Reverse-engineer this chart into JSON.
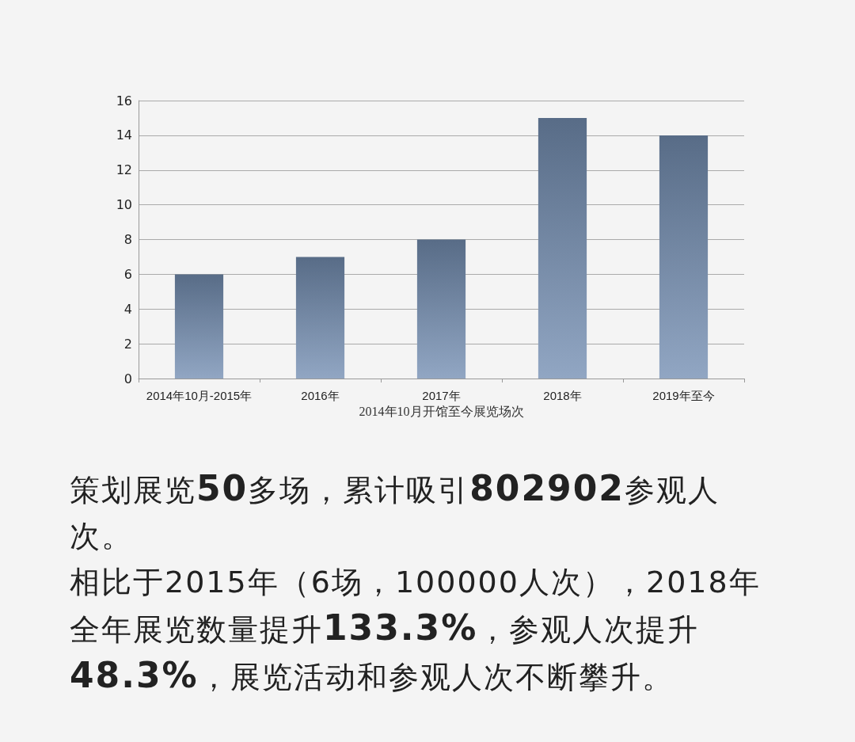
{
  "chart_data": {
    "type": "bar",
    "xlabel": "2014年10月开馆至今展览场次",
    "categories": [
      "2014年10月-2015年",
      "2016年",
      "2017年",
      "2018年",
      "2019年至今"
    ],
    "values": [
      6,
      7,
      8,
      15,
      14
    ],
    "color": "#7590b4",
    "ylim": [
      0,
      16
    ],
    "yticks": [
      0,
      2,
      4,
      6,
      8,
      10,
      12,
      14,
      16
    ],
    "grid": "y",
    "annotations": [
      "策划展览50多场，累计吸引802902参观人次。",
      "相比于2015年（6场，100000人次），2018年全年展览数量提升133.3%，参观人次提升48.3%，展览活动和参观人次不断攀升。"
    ]
  }
}
